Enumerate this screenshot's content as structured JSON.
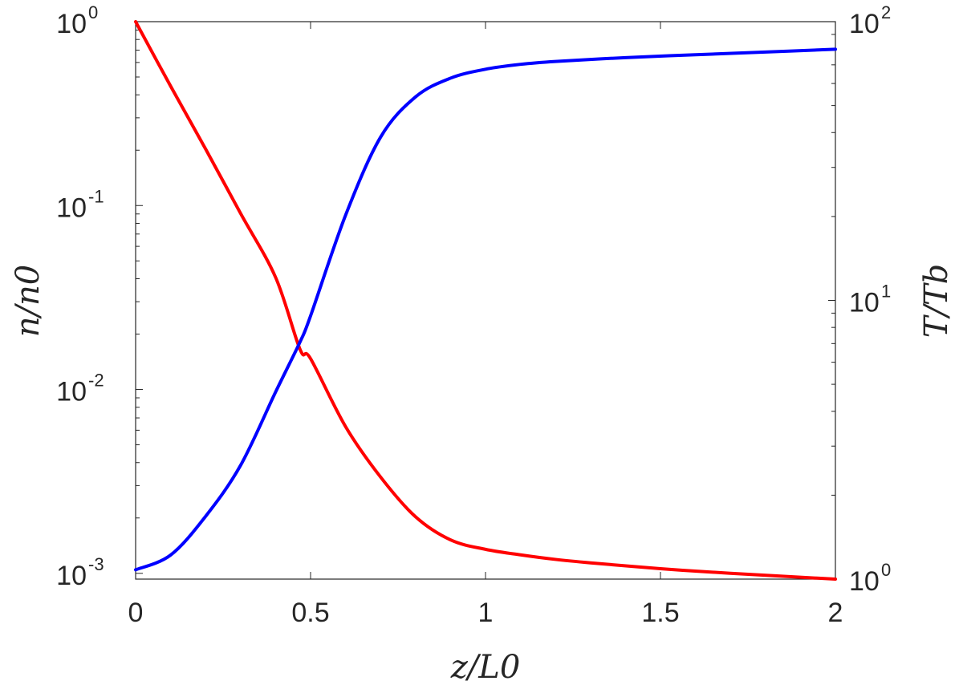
{
  "chart_data": {
    "type": "line",
    "xlabel": "z/L0",
    "ylabel_left": "n/n0",
    "ylabel_right": "T/Tb",
    "xlim": [
      0,
      2
    ],
    "ylim_left": [
      0.00093,
      1
    ],
    "ylim_right": [
      1,
      100
    ],
    "yscale_left": "log",
    "yscale_right": "log",
    "x_ticks": [
      0,
      0.5,
      1,
      1.5,
      2
    ],
    "x_tick_labels": [
      "0",
      "0.5",
      "1",
      "1.5",
      "2"
    ],
    "y_left_ticks": [
      {
        "value": 1,
        "base": "10",
        "exp": "0"
      },
      {
        "value": 0.1,
        "base": "10",
        "exp": "-1"
      },
      {
        "value": 0.01,
        "base": "10",
        "exp": "-2"
      },
      {
        "value": 0.001,
        "base": "10",
        "exp": "-3"
      }
    ],
    "y_right_ticks": [
      {
        "value": 1,
        "base": "10",
        "exp": "0"
      },
      {
        "value": 10,
        "base": "10",
        "exp": "1"
      },
      {
        "value": 100,
        "base": "10",
        "exp": "2"
      }
    ],
    "grid": false,
    "legend": "none",
    "series": [
      {
        "axis": "left",
        "color": "#ff0000",
        "x": [
          0,
          0.1,
          0.2,
          0.3,
          0.4,
          0.47,
          0.5,
          0.6,
          0.7,
          0.8,
          0.9,
          1.0,
          1.1,
          1.2,
          1.3,
          1.5,
          1.7,
          2.0
        ],
        "y": [
          1,
          0.446,
          0.203,
          0.0906,
          0.0407,
          0.0165,
          0.0147,
          0.00628,
          0.00334,
          0.00203,
          0.00152,
          0.00135,
          0.00126,
          0.00119,
          0.00114,
          0.00106,
          0.001,
          0.00093
        ]
      },
      {
        "axis": "right",
        "color": "#0000ff",
        "x": [
          0,
          0.1,
          0.2,
          0.3,
          0.4,
          0.47,
          0.5,
          0.6,
          0.7,
          0.8,
          0.9,
          1.0,
          1.1,
          1.2,
          1.4,
          1.6,
          1.8,
          2.0
        ],
        "y": [
          1.08,
          1.22,
          1.68,
          2.56,
          4.69,
          7.1,
          8.8,
          20.2,
          38.5,
          53.7,
          62.7,
          67.5,
          70.3,
          72.0,
          74.3,
          76.1,
          77.8,
          79.6
        ]
      }
    ]
  }
}
